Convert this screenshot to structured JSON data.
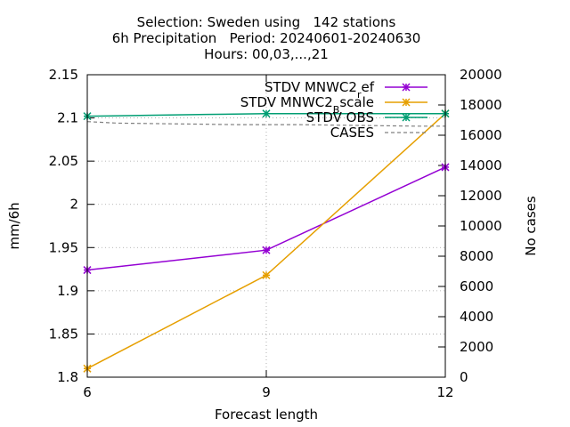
{
  "chart_data": {
    "type": "line",
    "title": [
      "Selection: Sweden using   142 stations",
      "6h Precipitation   Period: 20240601-20240630",
      "Hours: 00,03,...,21"
    ],
    "xlabel": "Forecast length",
    "ylabel": "mm/6h",
    "y2label": "No cases",
    "x": [
      6,
      9,
      12
    ],
    "xlim": [
      6,
      12
    ],
    "ylim": [
      1.8,
      2.15
    ],
    "y2lim": [
      0,
      20000
    ],
    "xticks": [
      6,
      9,
      12
    ],
    "yticks": [
      1.8,
      1.85,
      1.9,
      1.95,
      2,
      2.05,
      2.1,
      2.15
    ],
    "ytick_labels": [
      "1.8",
      "1.85",
      "1.9",
      "1.95",
      "2",
      "2.05",
      "2.1",
      "2.15"
    ],
    "y2ticks": [
      0,
      2000,
      4000,
      6000,
      8000,
      10000,
      12000,
      14000,
      16000,
      18000,
      20000
    ],
    "grid": "dotted",
    "legend_position": "top-right",
    "series": [
      {
        "name": "STDV MNWC2",
        "sub": "r",
        "suffix": "ef",
        "axis": "y",
        "color": "#9400d3",
        "marker": "x-star",
        "points": [
          [
            6,
            1.924
          ],
          [
            9,
            1.947
          ],
          [
            12,
            2.043
          ]
        ]
      },
      {
        "name": "STDV MNWC2",
        "sub": "B",
        "suffix": "scale",
        "axis": "y",
        "color": "#e69f00",
        "marker": "x-star",
        "points": [
          [
            6,
            1.81
          ],
          [
            9,
            1.918
          ],
          [
            12,
            2.105
          ]
        ]
      },
      {
        "name": "STDV OBS",
        "axis": "y",
        "color": "#009e73",
        "marker": "x-star",
        "points": [
          [
            6,
            2.102
          ],
          [
            7,
            2.103
          ],
          [
            8,
            2.104
          ],
          [
            9,
            2.105
          ],
          [
            10,
            2.105
          ],
          [
            11,
            2.105
          ],
          [
            12,
            2.105
          ]
        ]
      },
      {
        "name": "CASES",
        "axis": "y2",
        "color": "#808080",
        "dashed": true,
        "points": [
          [
            6,
            16900
          ],
          [
            6.5,
            16800
          ],
          [
            7.5,
            16750
          ],
          [
            8.5,
            16700
          ],
          [
            9.5,
            16700
          ],
          [
            10.5,
            16650
          ],
          [
            11.5,
            16600
          ],
          [
            12,
            16600
          ]
        ]
      }
    ]
  }
}
